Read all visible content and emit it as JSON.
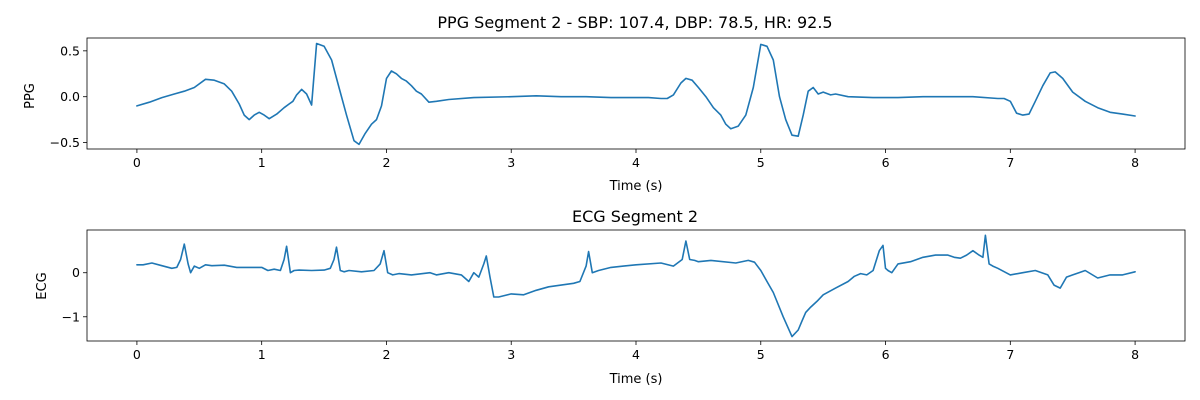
{
  "chart_data": [
    {
      "type": "line",
      "title": "PPG Segment 2 - SBP: 107.4, DBP: 78.5, HR: 92.5",
      "xlabel": "Time (s)",
      "ylabel": "PPG",
      "xlim": [
        -0.4,
        8.4
      ],
      "ylim": [
        -0.57,
        0.64
      ],
      "xticks": [
        0,
        1,
        2,
        3,
        4,
        5,
        6,
        7,
        8
      ],
      "yticks": [
        -0.5,
        0.0,
        0.5
      ],
      "ytick_labels": [
        "−0.5",
        "0.0",
        "0.5"
      ],
      "grid": false,
      "series": [
        {
          "color": "#1f77b4",
          "x": [
            0,
            0.1,
            0.2,
            0.3,
            0.38,
            0.46,
            0.55,
            0.62,
            0.7,
            0.76,
            0.82,
            0.86,
            0.9,
            0.94,
            0.98,
            1.02,
            1.06,
            1.12,
            1.18,
            1.22,
            1.25,
            1.28,
            1.32,
            1.36,
            1.4,
            1.44,
            1.5,
            1.56,
            1.62,
            1.68,
            1.74,
            1.78,
            1.83,
            1.88,
            1.92,
            1.96,
            2.0,
            2.04,
            2.08,
            2.12,
            2.16,
            2.2,
            2.24,
            2.28,
            2.34,
            2.4,
            2.5,
            2.7,
            3.0,
            3.2,
            3.4,
            3.6,
            3.8,
            4.0,
            4.1,
            4.2,
            4.25,
            4.3,
            4.36,
            4.4,
            4.45,
            4.5,
            4.56,
            4.62,
            4.68,
            4.72,
            4.76,
            4.82,
            4.88,
            4.94,
            5.0,
            5.05,
            5.1,
            5.15,
            5.2,
            5.25,
            5.3,
            5.34,
            5.38,
            5.42,
            5.46,
            5.5,
            5.56,
            5.6,
            5.7,
            5.9,
            6.1,
            6.3,
            6.5,
            6.7,
            6.9,
            6.95,
            7.0,
            7.05,
            7.1,
            7.15,
            7.2,
            7.26,
            7.32,
            7.36,
            7.42,
            7.5,
            7.6,
            7.7,
            7.8,
            7.9,
            8.0
          ],
          "values": [
            -0.1,
            -0.06,
            -0.01,
            0.03,
            0.06,
            0.1,
            0.19,
            0.18,
            0.14,
            0.06,
            -0.08,
            -0.2,
            -0.25,
            -0.2,
            -0.17,
            -0.2,
            -0.24,
            -0.19,
            -0.12,
            -0.08,
            -0.05,
            0.02,
            0.08,
            0.03,
            -0.09,
            0.58,
            0.55,
            0.4,
            0.1,
            -0.2,
            -0.48,
            -0.52,
            -0.4,
            -0.3,
            -0.25,
            -0.1,
            0.2,
            0.28,
            0.25,
            0.2,
            0.17,
            0.12,
            0.06,
            0.03,
            -0.06,
            -0.05,
            -0.03,
            -0.01,
            0.0,
            0.01,
            0.0,
            0.0,
            -0.01,
            -0.01,
            -0.01,
            -0.02,
            -0.02,
            0.02,
            0.15,
            0.2,
            0.18,
            0.1,
            0.0,
            -0.12,
            -0.2,
            -0.3,
            -0.35,
            -0.32,
            -0.2,
            0.1,
            0.57,
            0.55,
            0.4,
            0.0,
            -0.25,
            -0.42,
            -0.43,
            -0.2,
            0.06,
            0.1,
            0.03,
            0.05,
            0.02,
            0.03,
            0.0,
            -0.01,
            -0.01,
            0.0,
            0.0,
            0.0,
            -0.02,
            -0.02,
            -0.05,
            -0.18,
            -0.2,
            -0.19,
            -0.05,
            0.12,
            0.26,
            0.27,
            0.2,
            0.05,
            -0.05,
            -0.12,
            -0.17,
            -0.19,
            -0.21
          ]
        }
      ]
    },
    {
      "type": "line",
      "title": "ECG Segment 2",
      "xlabel": "Time (s)",
      "ylabel": "ECG",
      "xlim": [
        -0.4,
        8.4
      ],
      "ylim": [
        -1.55,
        0.97
      ],
      "xticks": [
        0,
        1,
        2,
        3,
        4,
        5,
        6,
        7,
        8
      ],
      "yticks": [
        -1,
        0
      ],
      "ytick_labels": [
        "−1",
        "0"
      ],
      "grid": false,
      "series": [
        {
          "color": "#1f77b4",
          "x": [
            0,
            0.05,
            0.12,
            0.2,
            0.28,
            0.32,
            0.35,
            0.38,
            0.41,
            0.43,
            0.46,
            0.5,
            0.55,
            0.6,
            0.7,
            0.8,
            0.9,
            1.0,
            1.05,
            1.1,
            1.15,
            1.18,
            1.2,
            1.23,
            1.26,
            1.3,
            1.4,
            1.5,
            1.55,
            1.58,
            1.6,
            1.63,
            1.66,
            1.7,
            1.8,
            1.9,
            1.95,
            1.98,
            2.01,
            2.05,
            2.1,
            2.2,
            2.35,
            2.4,
            2.5,
            2.6,
            2.66,
            2.7,
            2.74,
            2.78,
            2.8,
            2.83,
            2.86,
            2.9,
            3.0,
            3.1,
            3.2,
            3.3,
            3.5,
            3.55,
            3.6,
            3.62,
            3.65,
            3.7,
            3.8,
            3.9,
            4.0,
            4.2,
            4.3,
            4.37,
            4.4,
            4.43,
            4.47,
            4.5,
            4.6,
            4.8,
            4.9,
            4.95,
            5.0,
            5.05,
            5.1,
            5.18,
            5.25,
            5.3,
            5.33,
            5.36,
            5.4,
            5.45,
            5.5,
            5.6,
            5.7,
            5.75,
            5.8,
            5.85,
            5.9,
            5.95,
            5.98,
            6.0,
            6.02,
            6.05,
            6.1,
            6.2,
            6.3,
            6.4,
            6.5,
            6.55,
            6.6,
            6.65,
            6.7,
            6.75,
            6.78,
            6.8,
            6.83,
            6.86,
            6.9,
            7.0,
            7.1,
            7.2,
            7.3,
            7.3,
            7.35,
            7.4,
            7.45,
            7.5,
            7.55,
            7.6,
            7.7,
            7.8,
            7.9,
            8.0
          ],
          "values": [
            0.18,
            0.18,
            0.22,
            0.16,
            0.1,
            0.12,
            0.3,
            0.65,
            0.2,
            0.0,
            0.15,
            0.1,
            0.18,
            0.16,
            0.17,
            0.12,
            0.12,
            0.12,
            0.05,
            0.08,
            0.05,
            0.3,
            0.6,
            0.0,
            0.05,
            0.06,
            0.05,
            0.06,
            0.1,
            0.3,
            0.58,
            0.05,
            0.02,
            0.05,
            0.02,
            0.05,
            0.2,
            0.5,
            0.0,
            -0.05,
            -0.02,
            -0.05,
            0.0,
            -0.05,
            0.0,
            -0.05,
            -0.2,
            0.0,
            -0.1,
            0.2,
            0.38,
            -0.1,
            -0.55,
            -0.55,
            -0.48,
            -0.5,
            -0.4,
            -0.32,
            -0.24,
            -0.2,
            0.15,
            0.48,
            0.0,
            0.05,
            0.12,
            0.15,
            0.18,
            0.22,
            0.15,
            0.3,
            0.72,
            0.3,
            0.28,
            0.25,
            0.28,
            0.22,
            0.28,
            0.24,
            0.05,
            -0.2,
            -0.45,
            -1.0,
            -1.45,
            -1.3,
            -1.1,
            -0.9,
            -0.78,
            -0.65,
            -0.5,
            -0.35,
            -0.2,
            -0.08,
            -0.02,
            -0.05,
            0.05,
            0.5,
            0.62,
            0.1,
            0.05,
            0.0,
            0.2,
            0.25,
            0.35,
            0.4,
            0.4,
            0.35,
            0.33,
            0.4,
            0.5,
            0.4,
            0.35,
            0.85,
            0.2,
            0.15,
            0.1,
            -0.05,
            0.0,
            0.05,
            -0.05,
            -0.05,
            -0.28,
            -0.35,
            -0.1,
            -0.05,
            0.0,
            0.05,
            -0.12,
            -0.05,
            -0.05,
            0.02
          ]
        }
      ]
    }
  ]
}
